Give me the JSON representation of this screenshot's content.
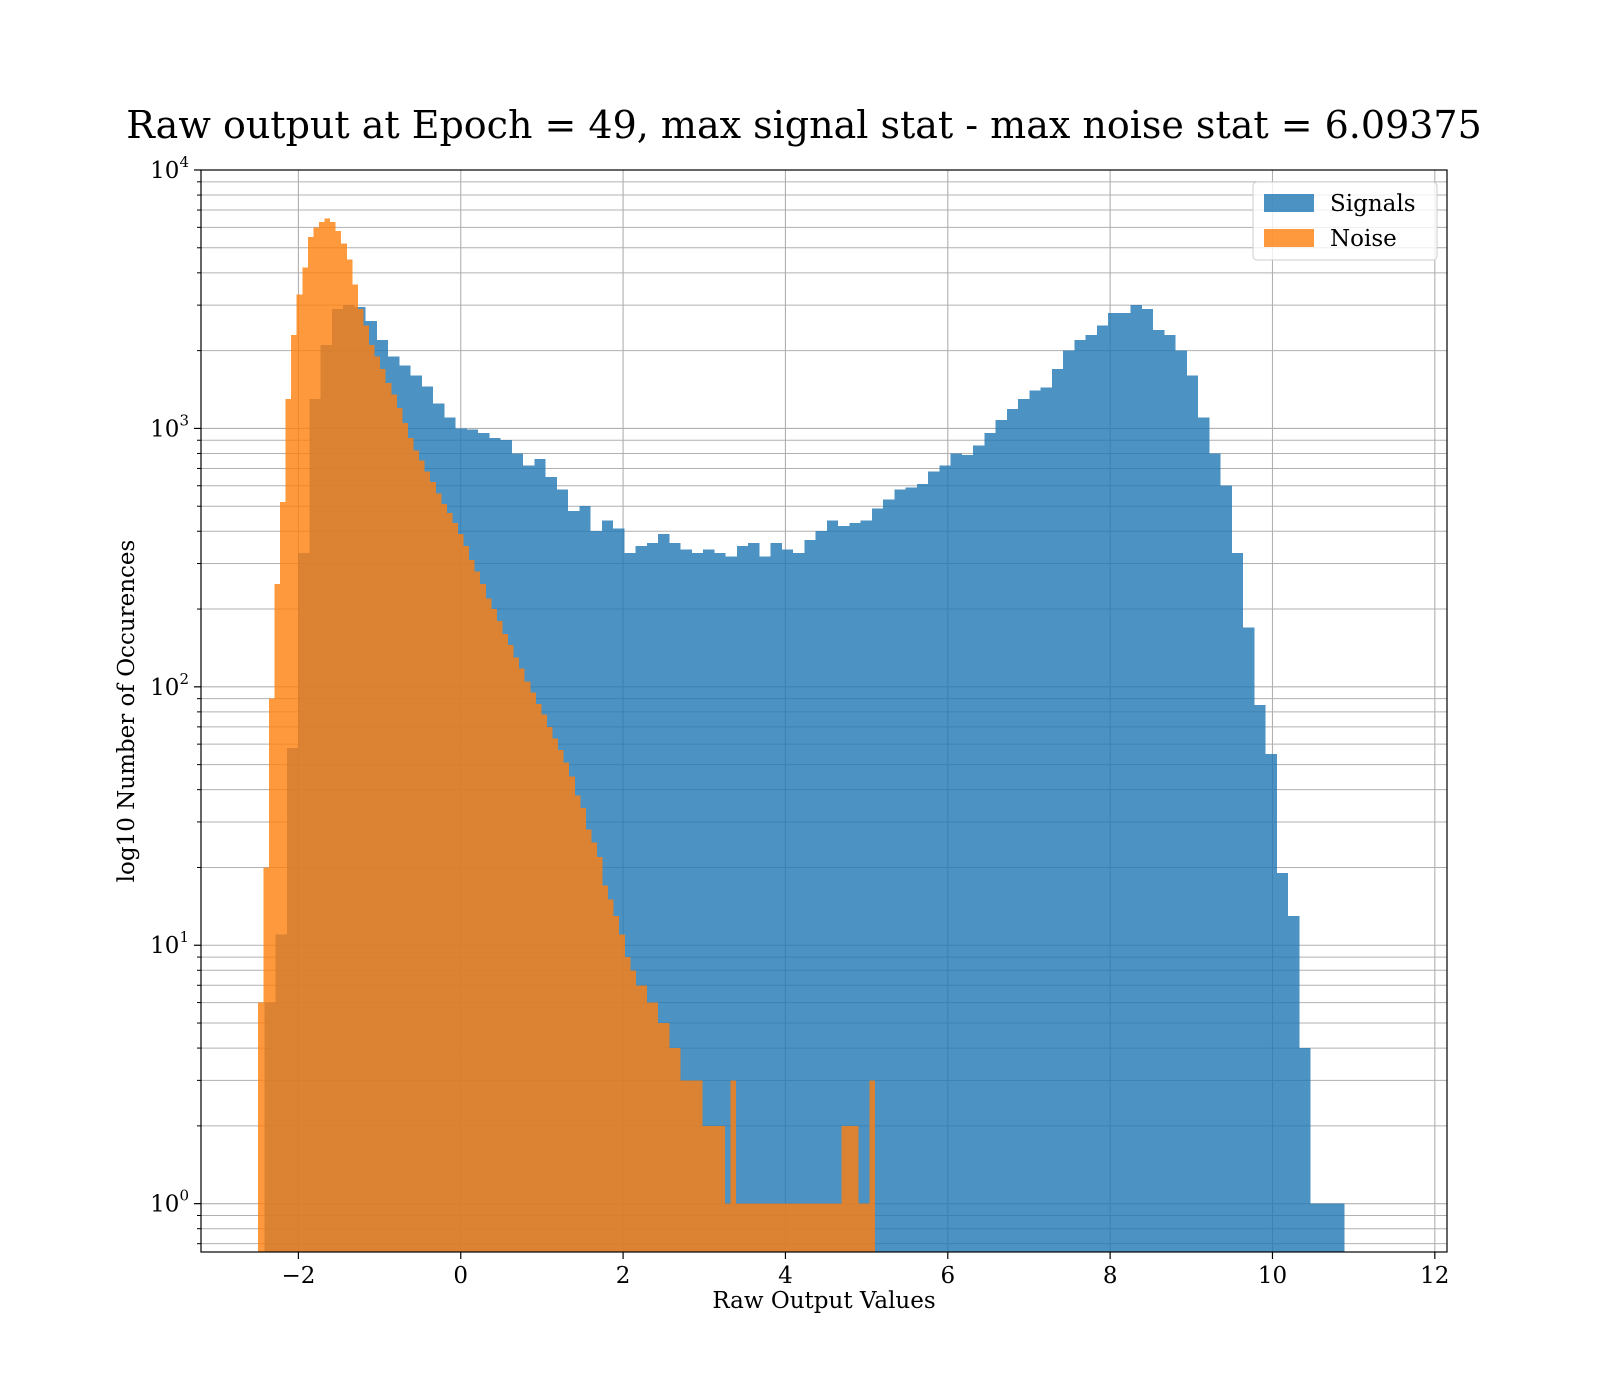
{
  "chart_data": {
    "type": "bar",
    "title": "Raw output at Epoch = 49, max signal stat - max noise stat = 6.09375",
    "xlabel": "Raw Output Values",
    "ylabel": "log10 Number of Occurences",
    "x_scale": "linear",
    "y_scale": "log",
    "xlim": [
      -3.2,
      12.15
    ],
    "ylim": [
      0.65,
      10000
    ],
    "x_ticks": [
      -2,
      0,
      2,
      4,
      6,
      8,
      10,
      12
    ],
    "x_tick_labels": [
      "−2",
      "0",
      "2",
      "4",
      "6",
      "8",
      "10",
      "12"
    ],
    "y_ticks": [
      1,
      10,
      100,
      1000,
      10000
    ],
    "y_tick_bases": [
      "10",
      "10",
      "10",
      "10",
      "10"
    ],
    "y_tick_exponents": [
      "0",
      "1",
      "2",
      "3",
      "4"
    ],
    "grid": true,
    "legend_position": "top-right",
    "series": [
      {
        "name": "Signals",
        "color": "#1f77b4",
        "opacity": 0.8,
        "bin_start": -2.42,
        "bin_width": 0.1386,
        "values": [
          6,
          11,
          58,
          330,
          1300,
          2100,
          2900,
          3000,
          2950,
          2600,
          2200,
          1900,
          1750,
          1600,
          1450,
          1250,
          1100,
          1000,
          990,
          960,
          920,
          900,
          800,
          720,
          760,
          650,
          580,
          480,
          500,
          400,
          440,
          410,
          330,
          350,
          360,
          390,
          360,
          340,
          330,
          340,
          330,
          320,
          350,
          360,
          320,
          360,
          340,
          330,
          370,
          400,
          440,
          420,
          430,
          440,
          490,
          530,
          580,
          590,
          610,
          680,
          720,
          800,
          790,
          860,
          960,
          1080,
          1190,
          1300,
          1400,
          1440,
          1700,
          2000,
          2200,
          2300,
          2500,
          2800,
          2800,
          3000,
          2900,
          2400,
          2300,
          2000,
          1600,
          1100,
          800,
          600,
          330,
          170,
          85,
          55,
          19,
          13,
          4,
          1,
          1,
          1
        ]
      },
      {
        "name": "Noise",
        "color": "#ff7f0e",
        "opacity": 0.8,
        "bin_start": -2.5,
        "bin_width": 0.0685,
        "values": [
          6,
          20,
          90,
          250,
          520,
          1300,
          2300,
          3300,
          4200,
          5500,
          6000,
          6300,
          6500,
          6300,
          5800,
          5200,
          4500,
          3600,
          2900,
          2500,
          2100,
          1900,
          1700,
          1500,
          1350,
          1200,
          1050,
          920,
          820,
          750,
          680,
          620,
          560,
          510,
          470,
          430,
          390,
          350,
          310,
          280,
          250,
          220,
          200,
          180,
          160,
          145,
          130,
          118,
          105,
          95,
          86,
          78,
          70,
          63,
          57,
          51,
          45,
          38,
          34,
          28,
          25,
          22,
          17,
          15,
          13,
          11,
          9,
          8,
          7,
          7,
          6,
          6,
          5,
          5,
          4,
          4,
          3,
          3,
          3,
          3,
          2,
          2,
          2,
          2,
          1,
          3,
          1,
          1,
          1,
          1,
          1,
          1,
          1,
          1,
          1,
          1,
          1,
          1,
          1,
          1,
          1,
          1,
          1,
          1,
          1,
          2,
          2,
          2,
          1,
          1,
          3
        ]
      }
    ]
  }
}
